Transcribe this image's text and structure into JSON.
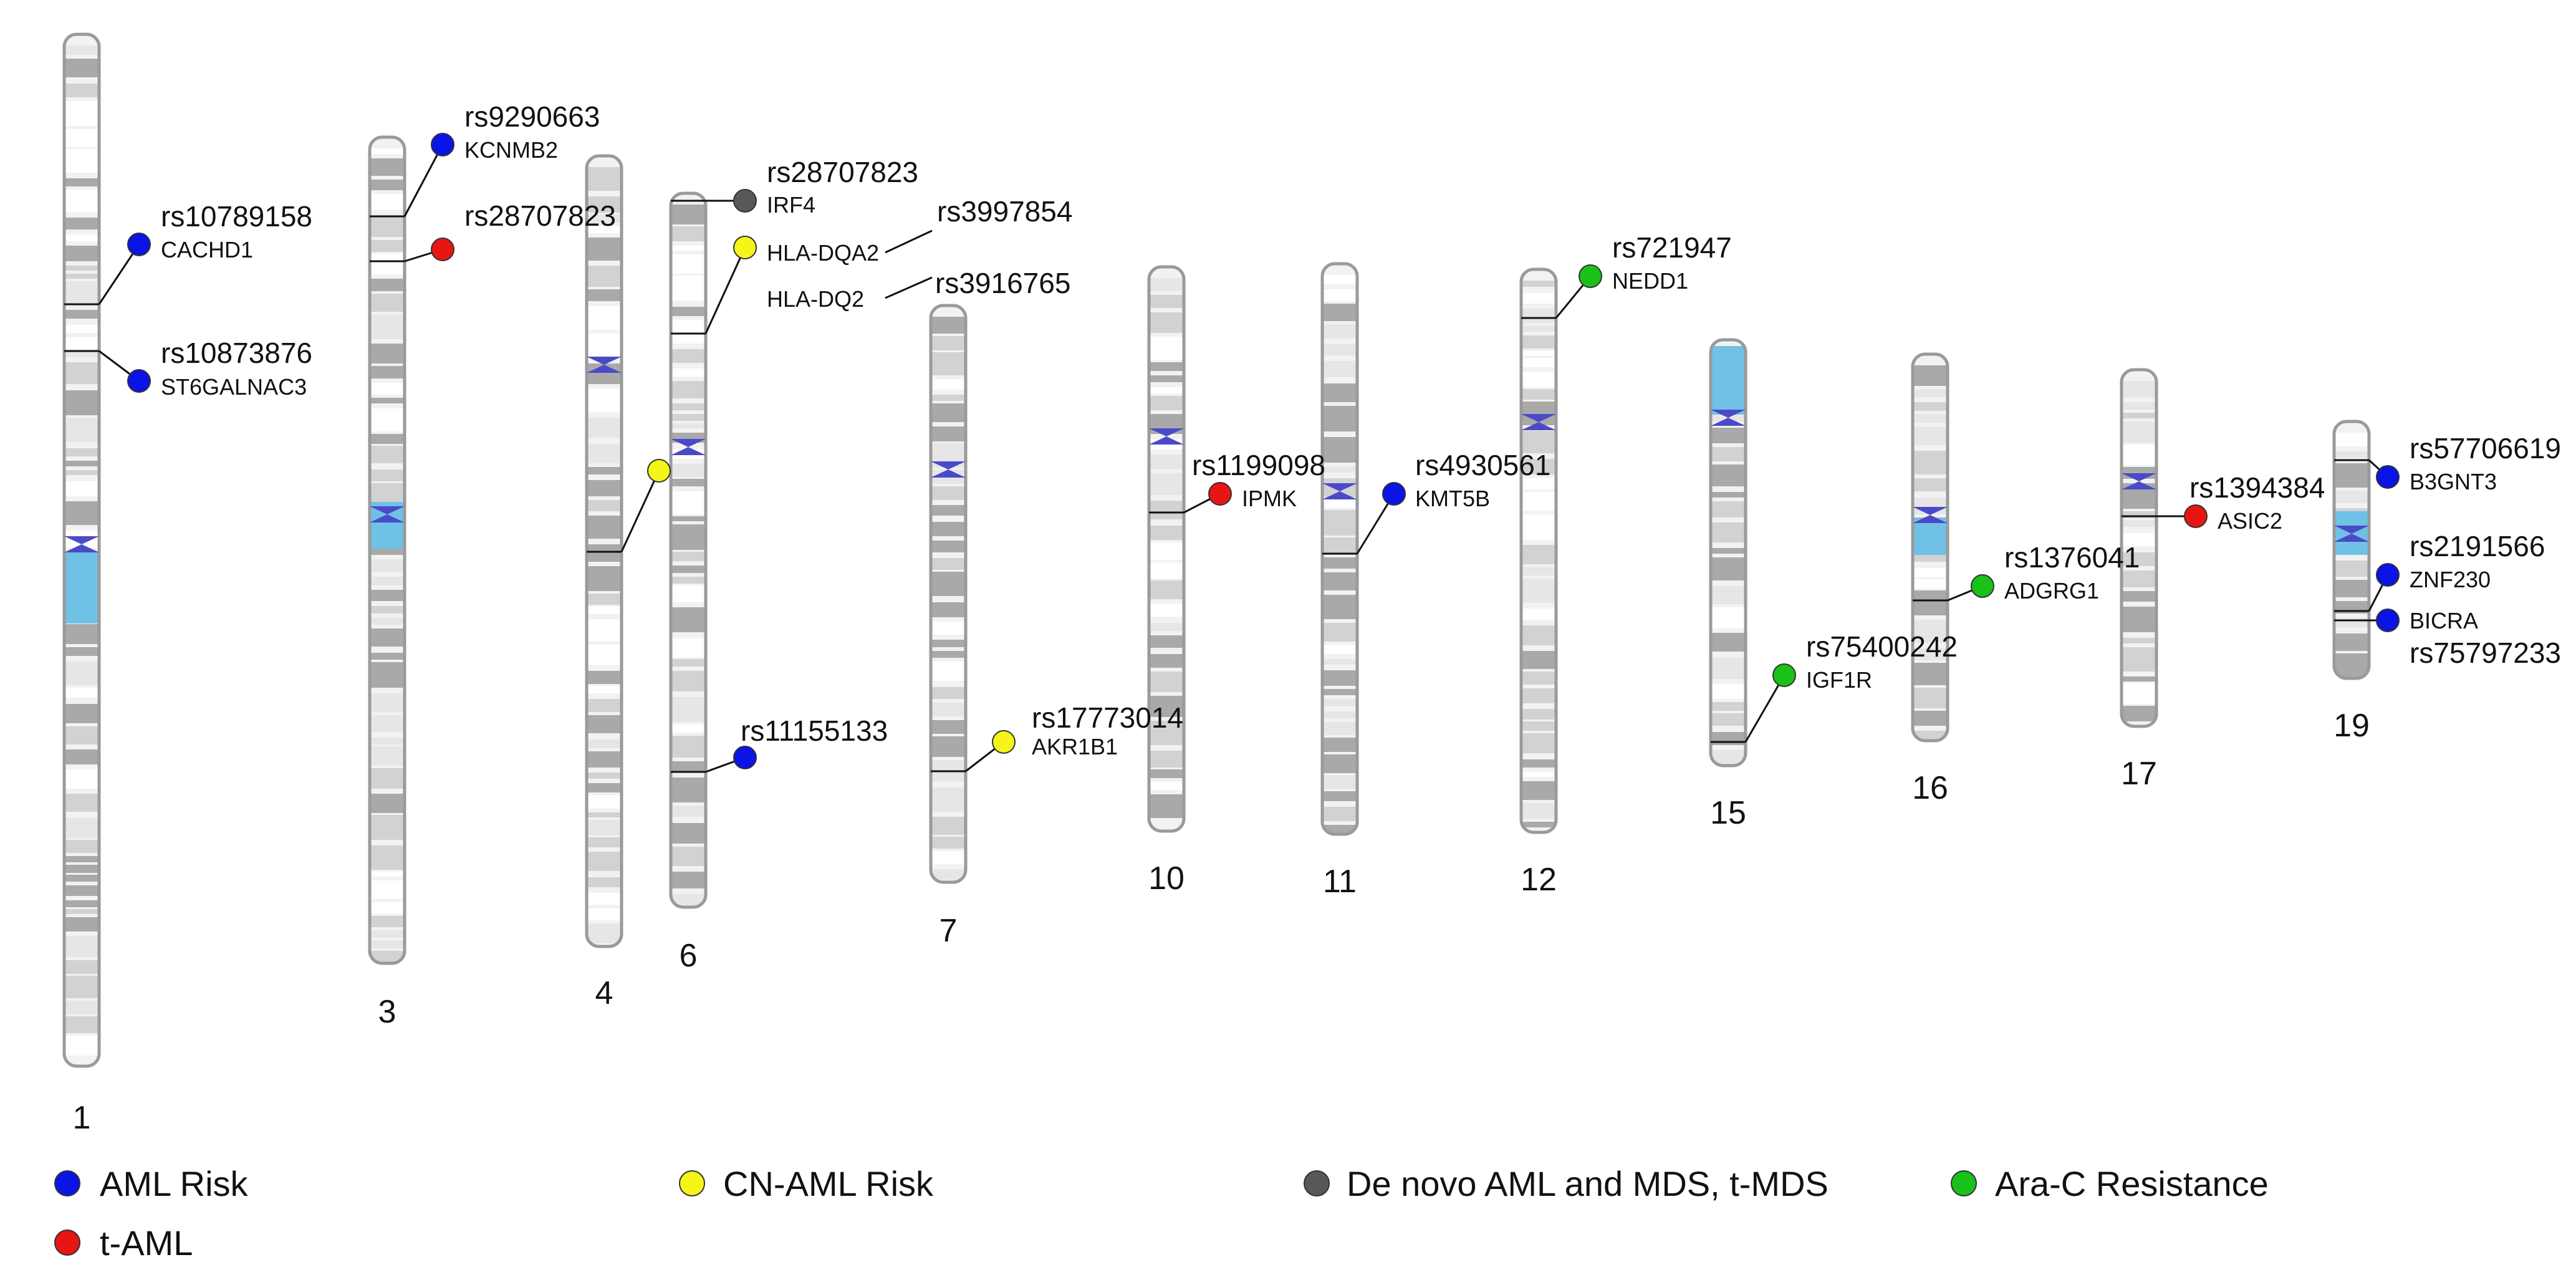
{
  "colors": {
    "AML Risk": "#0a14e6",
    "t-AML": "#e81515",
    "CN-AML Risk": "#f5f518",
    "De novo AML and MDS, t-MDS": "#585858",
    "Ara-C Resistance": "#19c119",
    "centromere": "#4a4ac8",
    "heterochromatin": "#6fc1e6"
  },
  "legend": [
    {
      "label": "AML Risk",
      "category": "AML Risk"
    },
    {
      "label": "CN-AML Risk",
      "category": "CN-AML Risk"
    },
    {
      "label": "De novo AML and MDS, t-MDS",
      "category": "De novo AML and MDS, t-MDS"
    },
    {
      "label": "Ara-C Resistance",
      "category": "Ara-C Resistance"
    },
    {
      "label": "t-AML",
      "category": "t-AML"
    }
  ],
  "chromosomes": [
    {
      "label": "1"
    },
    {
      "label": "3"
    },
    {
      "label": "4"
    },
    {
      "label": "6"
    },
    {
      "label": "7"
    },
    {
      "label": "10"
    },
    {
      "label": "11"
    },
    {
      "label": "12"
    },
    {
      "label": "15"
    },
    {
      "label": "16"
    },
    {
      "label": "17"
    },
    {
      "label": "19"
    }
  ],
  "snps": [
    {
      "chromosome": "1",
      "rsid": "rs10789158",
      "gene": "CACHD1",
      "category": "AML Risk"
    },
    {
      "chromosome": "1",
      "rsid": "rs10873876",
      "gene": "ST6GALNAC3",
      "category": "AML Risk"
    },
    {
      "chromosome": "3",
      "rsid": "rs9290663",
      "gene": "KCNMB2",
      "category": "AML Risk"
    },
    {
      "chromosome": "3",
      "rsid": "rs28707823",
      "gene": "",
      "category": "t-AML"
    },
    {
      "chromosome": "4",
      "rsid": "",
      "gene": "",
      "category": "CN-AML Risk"
    },
    {
      "chromosome": "6",
      "rsid": "rs28707823",
      "gene": "IRF4",
      "category": "De novo AML and MDS, t-MDS"
    },
    {
      "chromosome": "6",
      "rsid": "rs3997854",
      "gene": "HLA-DQA2",
      "category": "CN-AML Risk"
    },
    {
      "chromosome": "6",
      "rsid": "rs3916765",
      "gene": "HLA-DQ2",
      "category": "CN-AML Risk"
    },
    {
      "chromosome": "6",
      "rsid": "rs11155133",
      "gene": "",
      "category": "AML Risk"
    },
    {
      "chromosome": "7",
      "rsid": "rs17773014",
      "gene": "AKR1B1",
      "category": "CN-AML Risk"
    },
    {
      "chromosome": "10",
      "rsid": "rs1199098",
      "gene": "IPMK",
      "category": "t-AML"
    },
    {
      "chromosome": "11",
      "rsid": "rs4930561",
      "gene": "KMT5B",
      "category": "AML Risk"
    },
    {
      "chromosome": "12",
      "rsid": "rs721947",
      "gene": "NEDD1",
      "category": "Ara-C Resistance"
    },
    {
      "chromosome": "15",
      "rsid": "rs75400242",
      "gene": "IGF1R",
      "category": "Ara-C Resistance"
    },
    {
      "chromosome": "16",
      "rsid": "rs1376041",
      "gene": "ADGRG1",
      "category": "Ara-C Resistance"
    },
    {
      "chromosome": "17",
      "rsid": "rs1394384",
      "gene": "ASIC2",
      "category": "t-AML"
    },
    {
      "chromosome": "19",
      "rsid": "rs57706619",
      "gene": "B3GNT3",
      "category": "AML Risk"
    },
    {
      "chromosome": "19",
      "rsid": "rs2191566",
      "gene": "ZNF230",
      "category": "AML Risk"
    },
    {
      "chromosome": "19",
      "rsid": "rs75797233",
      "gene": "BICRA",
      "category": "AML Risk"
    }
  ]
}
